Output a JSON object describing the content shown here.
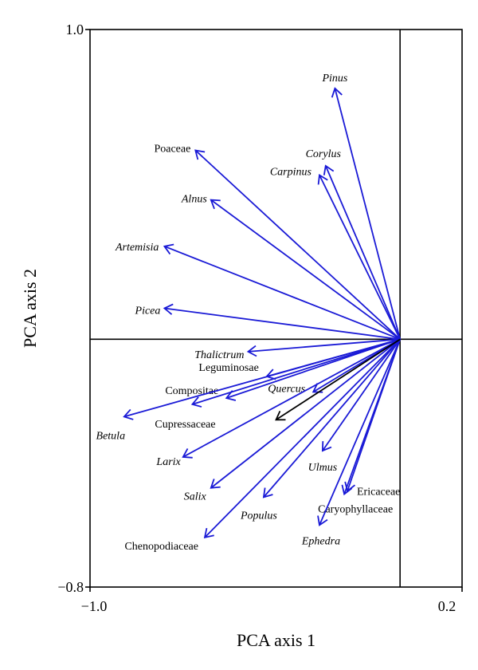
{
  "chart_data": {
    "type": "scatter",
    "subtype": "pca-biplot",
    "title": "",
    "xlabel": "PCA axis 1",
    "ylabel": "PCA axis 2",
    "xlim": [
      -1.0,
      0.2
    ],
    "ylim": [
      -0.8,
      1.0
    ],
    "x_tick_labels": [
      "−1.0",
      "0.2"
    ],
    "y_tick_labels": [
      "1.0",
      "−0.8"
    ],
    "grid": false,
    "vector_color": "#1a1ad6",
    "supplementary_color": "#000000",
    "vectors": [
      {
        "name": "Pinus",
        "x": -0.21,
        "y": 0.81,
        "italic": true
      },
      {
        "name": "Corylus",
        "x": -0.24,
        "y": 0.56,
        "italic": true
      },
      {
        "name": "Carpinus",
        "x": -0.26,
        "y": 0.53,
        "italic": true
      },
      {
        "name": "Poaceae",
        "x": -0.66,
        "y": 0.61,
        "italic": false
      },
      {
        "name": "Alnus",
        "x": -0.61,
        "y": 0.45,
        "italic": true
      },
      {
        "name": "Artemisia",
        "x": -0.76,
        "y": 0.3,
        "italic": true
      },
      {
        "name": "Picea",
        "x": -0.76,
        "y": 0.1,
        "italic": true
      },
      {
        "name": "Thalictrum",
        "x": -0.49,
        "y": -0.04,
        "italic": true
      },
      {
        "name": "Leguminosae",
        "x": -0.43,
        "y": -0.12,
        "italic": false
      },
      {
        "name": "Compositae",
        "x": -0.56,
        "y": -0.19,
        "italic": false
      },
      {
        "name": "Cupressaceae",
        "x": -0.67,
        "y": -0.21,
        "italic": false
      },
      {
        "name": "Betula",
        "x": -0.89,
        "y": -0.25,
        "italic": true
      },
      {
        "name": "Quercus",
        "x": -0.28,
        "y": -0.17,
        "italic": true
      },
      {
        "name": "Larix",
        "x": -0.7,
        "y": -0.38,
        "italic": true
      },
      {
        "name": "Ulmus",
        "x": -0.25,
        "y": -0.36,
        "italic": true
      },
      {
        "name": "Ericaceae",
        "x": -0.17,
        "y": -0.49,
        "italic": false
      },
      {
        "name": "Caryophyllaceae",
        "x": -0.18,
        "y": -0.5,
        "italic": false
      },
      {
        "name": "Salix",
        "x": -0.61,
        "y": -0.48,
        "italic": true
      },
      {
        "name": "Populus",
        "x": -0.44,
        "y": -0.51,
        "italic": true
      },
      {
        "name": "Ephedra",
        "x": -0.26,
        "y": -0.6,
        "italic": true
      },
      {
        "name": "Chenopodiaceae",
        "x": -0.63,
        "y": -0.64,
        "italic": false
      }
    ],
    "supplementary_vectors": [
      {
        "name": "",
        "x": -0.4,
        "y": -0.26
      }
    ]
  }
}
